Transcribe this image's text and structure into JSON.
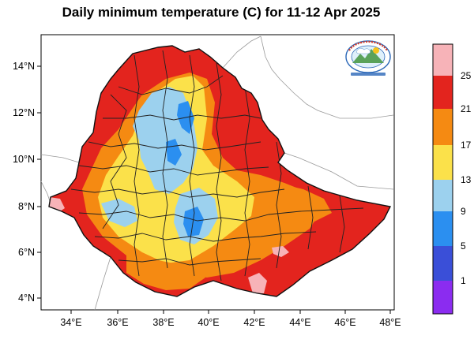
{
  "title": "Daily minimum temperature (C) for 11-12 Apr 2025",
  "axes": {
    "lat_labels": [
      "14°N",
      "12°N",
      "10°N",
      "8°N",
      "6°N",
      "4°N"
    ],
    "lon_labels": [
      "34°E",
      "36°E",
      "38°E",
      "40°E",
      "42°E",
      "44°E",
      "46°E",
      "48°E"
    ]
  },
  "colorbar": {
    "labels": [
      "25",
      "21",
      "17",
      "13",
      "9",
      "5",
      "1"
    ],
    "bins_top_to_bottom": [
      {
        "color": "#f7b3b8"
      },
      {
        "color": "#e3241e"
      },
      {
        "color": "#f58a12"
      },
      {
        "color": "#fbe14a"
      },
      {
        "color": "#9cd1ee"
      },
      {
        "color": "#2b8ff0"
      },
      {
        "color": "#3a4fd8"
      },
      {
        "color": "#8b2cf0"
      }
    ]
  },
  "logo": {
    "text_arc": "ETHIOPIAN METEOROLOGY INSTITUTE",
    "text_bottom": "Ethiopian Meteorology Institute"
  }
}
